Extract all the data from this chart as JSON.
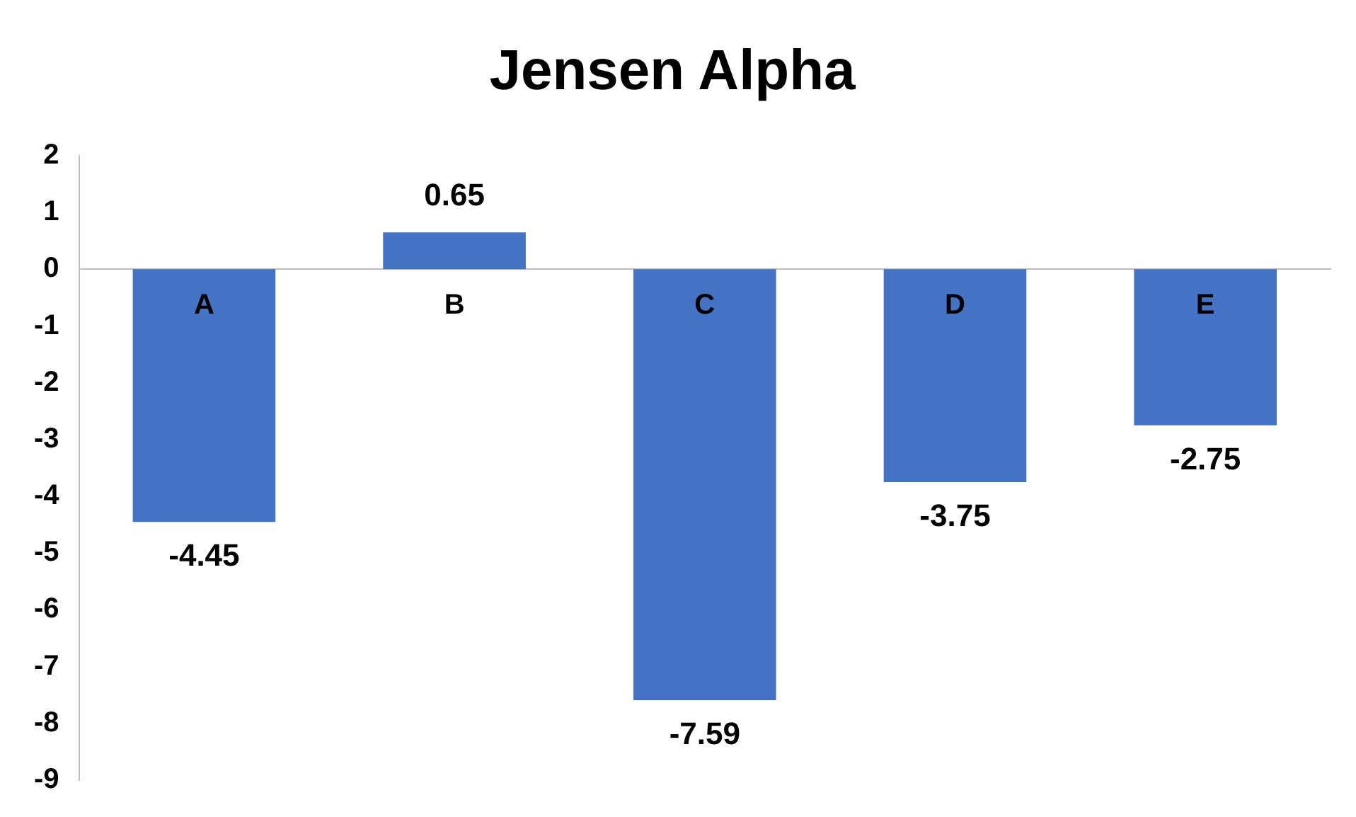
{
  "chart_data": {
    "type": "bar",
    "title": "Jensen Alpha",
    "categories": [
      "A",
      "B",
      "C",
      "D",
      "E"
    ],
    "values": [
      -4.45,
      0.65,
      -7.59,
      -3.75,
      -2.75
    ],
    "color": "#4472c4",
    "ylim": [
      -9,
      2
    ],
    "yticks": [
      -9,
      -8,
      -7,
      -6,
      -5,
      -4,
      -3,
      -2,
      -1,
      0,
      1,
      2
    ],
    "data_labels": true
  }
}
